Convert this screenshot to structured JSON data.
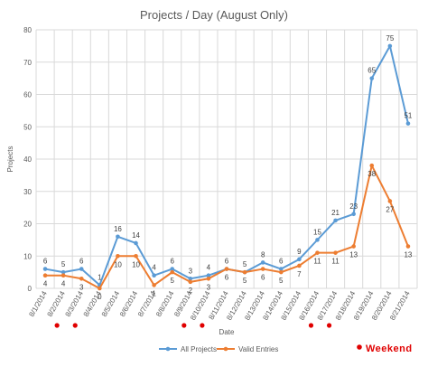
{
  "chart_data": {
    "type": "line",
    "title": "Projects / Day (August Only)",
    "xlabel": "Date",
    "ylabel": "Projects",
    "ylim": [
      0,
      80
    ],
    "yticks": [
      0,
      10,
      20,
      30,
      40,
      50,
      60,
      70,
      80
    ],
    "grid": true,
    "legend": "bottom",
    "categories": [
      "8/1/2014",
      "8/2/2014",
      "8/3/2014",
      "8/4/2014",
      "8/5/2014",
      "8/6/2014",
      "8/7/2014",
      "8/8/2014",
      "8/9/2014",
      "8/10/2014",
      "8/11/2014",
      "8/12/2014",
      "8/13/2014",
      "8/14/2014",
      "8/15/2014",
      "8/16/2014",
      "8/17/2014",
      "8/18/2014",
      "8/19/2014",
      "8/20/2014",
      "8/21/2014"
    ],
    "series": [
      {
        "name": "All Projects",
        "color": "#5b9bd5",
        "values": [
          6,
          5,
          6,
          1,
          16,
          14,
          4,
          6,
          3,
          4,
          6,
          5,
          8,
          6,
          9,
          15,
          21,
          23,
          65,
          75,
          51
        ]
      },
      {
        "name": "Valid Entries",
        "color": "#ed7d31",
        "values": [
          4,
          4,
          3,
          0,
          10,
          10,
          1,
          5,
          2,
          3,
          6,
          5,
          6,
          5,
          7,
          11,
          11,
          13,
          38,
          27,
          13
        ]
      }
    ],
    "weekend_markers": [
      "8/2/2014",
      "8/3/2014",
      "8/9/2014",
      "8/10/2014",
      "8/16/2014",
      "8/17/2014"
    ],
    "weekend_label": "Weekend",
    "weekend_color": "#e00000"
  }
}
